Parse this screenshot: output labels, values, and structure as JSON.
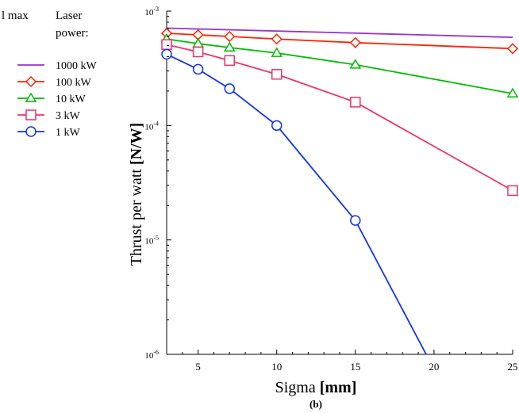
{
  "header": {
    "top_label": "l max",
    "legend_title_line1": "Laser",
    "legend_title_line2": "power:"
  },
  "chart_data": {
    "type": "line",
    "subtitle": "(b)",
    "xlabel": "Sigma",
    "xlabel_unit": "[mm]",
    "ylabel": "Thrust per watt",
    "ylabel_unit": "[N/W]",
    "xlim": [
      3,
      25
    ],
    "ylim": [
      1e-06,
      0.001
    ],
    "yscale": "log",
    "x_ticks": [
      5,
      10,
      15,
      20,
      25
    ],
    "y_ticks": [
      {
        "value": 0.001,
        "base": "10",
        "exp": "-3"
      },
      {
        "value": 0.0001,
        "base": "10",
        "exp": "-4"
      },
      {
        "value": 1e-05,
        "base": "10",
        "exp": "-5"
      },
      {
        "value": 1e-06,
        "base": "10",
        "exp": "-6"
      }
    ],
    "grid": false,
    "legend_position": "left",
    "series": [
      {
        "name": "1000 kW",
        "color": "#9933cc",
        "marker": "none",
        "x": [
          3,
          25
        ],
        "y": [
          0.00071,
          0.00059
        ]
      },
      {
        "name": "100 kW",
        "color": "#ff2200",
        "marker": "diamond",
        "x": [
          3,
          5,
          7,
          10,
          15,
          25
        ],
        "y": [
          0.00064,
          0.00062,
          0.0006,
          0.00057,
          0.00053,
          0.00047
        ]
      },
      {
        "name": "10 kW",
        "color": "#00bb00",
        "marker": "triangle",
        "x": [
          3,
          5,
          7,
          10,
          15,
          25
        ],
        "y": [
          0.00057,
          0.00052,
          0.00048,
          0.00043,
          0.00034,
          0.00019
        ]
      },
      {
        "name": "3 kW",
        "color": "#ee3366",
        "marker": "square",
        "x": [
          3,
          5,
          7,
          10,
          15,
          25
        ],
        "y": [
          0.00051,
          0.00044,
          0.00037,
          0.00028,
          0.00016,
          2.7e-05
        ]
      },
      {
        "name": "1 kW",
        "color": "#1133ee",
        "marker": "circle",
        "x": [
          3,
          5,
          7,
          10,
          15,
          19.5
        ],
        "y": [
          0.00042,
          0.00031,
          0.00021,
          0.0001,
          1.48e-05,
          1e-06
        ],
        "marker_count": 5
      }
    ]
  }
}
